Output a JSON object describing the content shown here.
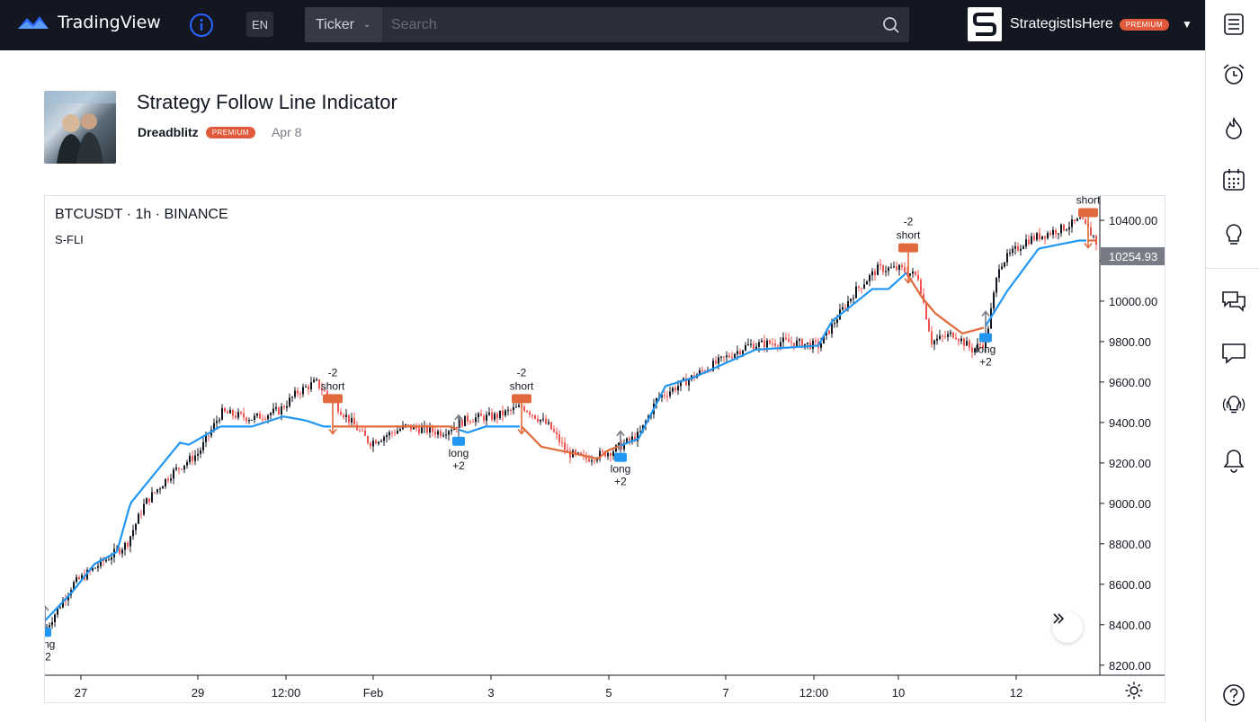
{
  "topbar": {
    "brand": "TradingView",
    "lang": "EN",
    "ticker_label": "Ticker",
    "search_placeholder": "Search",
    "username": "StrategistIsHere",
    "user_badge": "PREMIUM"
  },
  "header": {
    "title": "Strategy Follow Line Indicator",
    "author": "Dreadblitz",
    "author_badge": "PREMIUM",
    "date": "Apr 8"
  },
  "chart_header": {
    "symbol_line": "BTCUSDT · 1h · BINANCE",
    "indicator": "S-FLI"
  },
  "right_toolbar": [
    "menu-icon",
    "alarm-clock-icon",
    "hotlist-icon",
    "calendar-icon",
    "idea-icon",
    "chats-icon",
    "chat-icon",
    "streams-icon",
    "notifications-icon",
    "help-icon"
  ],
  "colors": {
    "up": "#26a69a",
    "down": "#ef5350",
    "candle": "#131722",
    "line_long": "#2196f3",
    "line_short": "#e06a3c",
    "brand": "#2962ff",
    "badge": "#e0593c"
  },
  "chart_data": {
    "type": "line",
    "symbol": "BTCUSDT",
    "interval": "1h",
    "exchange": "BINANCE",
    "indicator": "S-FLI",
    "last_price": "10254.93",
    "ylim": [
      8150,
      10520
    ],
    "y_ticks": [
      "10400.00",
      "10200.00",
      "10000.00",
      "9800.00",
      "9600.00",
      "9400.00",
      "9200.00",
      "9000.00",
      "8800.00",
      "8600.00",
      "8400.00",
      "8200.00"
    ],
    "x_ticks": [
      "27",
      "29",
      "12:00",
      "Feb",
      "3",
      "5",
      "7",
      "12:00",
      "10",
      "12"
    ],
    "price_path": [
      [
        0,
        8380
      ],
      [
        30,
        8600
      ],
      [
        60,
        8700
      ],
      [
        90,
        8800
      ],
      [
        110,
        9000
      ],
      [
        140,
        9150
      ],
      [
        170,
        9250
      ],
      [
        195,
        9450
      ],
      [
        230,
        9420
      ],
      [
        260,
        9460
      ],
      [
        280,
        9550
      ],
      [
        300,
        9600
      ],
      [
        330,
        9450
      ],
      [
        360,
        9300
      ],
      [
        400,
        9380
      ],
      [
        440,
        9350
      ],
      [
        470,
        9420
      ],
      [
        500,
        9430
      ],
      [
        530,
        9480
      ],
      [
        560,
        9380
      ],
      [
        580,
        9250
      ],
      [
        600,
        9220
      ],
      [
        630,
        9260
      ],
      [
        660,
        9340
      ],
      [
        680,
        9520
      ],
      [
        710,
        9600
      ],
      [
        740,
        9680
      ],
      [
        780,
        9780
      ],
      [
        820,
        9800
      ],
      [
        860,
        9780
      ],
      [
        880,
        9920
      ],
      [
        900,
        10050
      ],
      [
        925,
        10160
      ],
      [
        950,
        10160
      ],
      [
        970,
        10120
      ],
      [
        985,
        9800
      ],
      [
        1010,
        9840
      ],
      [
        1030,
        9760
      ],
      [
        1045,
        9800
      ],
      [
        1060,
        10180
      ],
      [
        1090,
        10300
      ],
      [
        1130,
        10360
      ],
      [
        1150,
        10400
      ],
      [
        1165,
        10320
      ],
      [
        1172,
        10250
      ]
    ],
    "follow_line": [
      [
        0,
        8420
      ],
      [
        30,
        8560
      ],
      [
        55,
        8700
      ],
      [
        80,
        8760
      ],
      [
        95,
        9000
      ],
      [
        150,
        9300
      ],
      [
        160,
        9290
      ],
      [
        195,
        9380
      ],
      [
        230,
        9380
      ],
      [
        265,
        9430
      ],
      [
        290,
        9410
      ],
      [
        310,
        9380
      ],
      [
        450,
        9380
      ],
      [
        470,
        9350
      ],
      [
        490,
        9380
      ],
      [
        530,
        9380
      ],
      [
        552,
        9280
      ],
      [
        585,
        9250
      ],
      [
        615,
        9220
      ],
      [
        625,
        9260
      ],
      [
        660,
        9320
      ],
      [
        690,
        9580
      ],
      [
        720,
        9620
      ],
      [
        760,
        9700
      ],
      [
        790,
        9760
      ],
      [
        860,
        9780
      ],
      [
        875,
        9900
      ],
      [
        920,
        10060
      ],
      [
        938,
        10060
      ],
      [
        958,
        10140
      ],
      [
        975,
        10020
      ],
      [
        990,
        9940
      ],
      [
        1020,
        9840
      ],
      [
        1045,
        9870
      ],
      [
        1070,
        10050
      ],
      [
        1105,
        10260
      ],
      [
        1150,
        10300
      ],
      [
        1172,
        10300
      ]
    ],
    "signals": [
      {
        "type": "long",
        "size": "+2",
        "date_index": 0
      },
      {
        "type": "short",
        "size": "-2",
        "date_index": 320
      },
      {
        "type": "long",
        "size": "+2",
        "date_index": 460
      },
      {
        "type": "short",
        "size": "-2",
        "date_index": 530
      },
      {
        "type": "long",
        "size": "+2",
        "date_index": 640
      },
      {
        "type": "short",
        "size": "-2",
        "date_index": 960
      },
      {
        "type": "long",
        "size": "+2",
        "date_index": 1046
      },
      {
        "type": "short",
        "size": "-2",
        "date_index": 1160
      }
    ]
  }
}
